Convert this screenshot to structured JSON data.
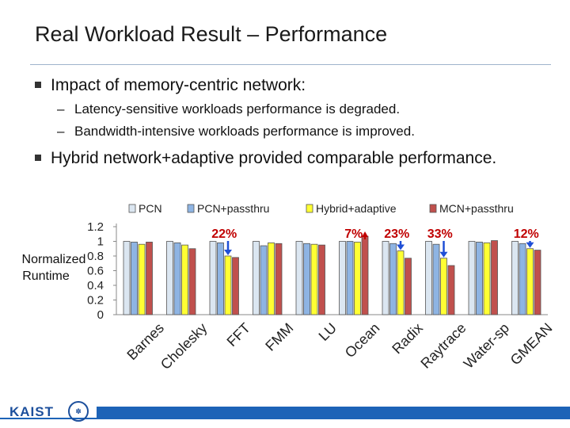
{
  "slide": {
    "title": "Real Workload Result – Performance",
    "bullets": [
      {
        "text": "Impact of memory-centric network:",
        "subs": [
          "Latency-sensitive workloads performance is degraded.",
          "Bandwidth-intensive workloads performance is improved."
        ]
      },
      {
        "text": "Hybrid network+adaptive provided comparable performance."
      }
    ]
  },
  "footer": {
    "logo_text": "KAIST",
    "seal_icon": "university-seal-icon"
  },
  "chart_data": {
    "type": "bar",
    "ylabel": "Normalized Runtime",
    "ylim": [
      0,
      1.2
    ],
    "yticks": [
      "0",
      "0.2",
      "0.4",
      "0.6",
      "0.8",
      "1",
      "1.2"
    ],
    "legend_position": "top",
    "categories": [
      "Barnes",
      "Cholesky",
      "FFT",
      "FMM",
      "LU",
      "Ocean",
      "Radix",
      "Raytrace",
      "Water-sp",
      "GMEAN"
    ],
    "series": [
      {
        "name": "PCN",
        "color": "#dbe6f1",
        "values": [
          1.0,
          1.0,
          1.0,
          1.0,
          1.0,
          1.0,
          1.0,
          1.0,
          1.0,
          1.0
        ]
      },
      {
        "name": "PCN+passthru",
        "color": "#8eb4e3",
        "values": [
          0.99,
          0.98,
          0.98,
          0.94,
          0.97,
          1.0,
          0.97,
          0.96,
          0.99,
          0.97
        ]
      },
      {
        "name": "Hybrid+adaptive",
        "color": "#ffff33",
        "values": [
          0.96,
          0.95,
          0.8,
          0.98,
          0.96,
          0.99,
          0.87,
          0.77,
          0.98,
          0.9
        ]
      },
      {
        "name": "MCN+passthru",
        "color": "#c0504d",
        "values": [
          0.99,
          0.9,
          0.78,
          0.97,
          0.95,
          1.07,
          0.77,
          0.67,
          1.01,
          0.88
        ]
      }
    ],
    "annotations": [
      {
        "text": "22%",
        "category": "FFT",
        "color": "#c00000",
        "arrow": "down",
        "arrow_color": "#1f4fd6"
      },
      {
        "text": "7%",
        "category": "Ocean",
        "color": "#c00000",
        "arrow": "up",
        "arrow_color": "#c00000"
      },
      {
        "text": "23%",
        "category": "Radix",
        "color": "#c00000",
        "arrow": "down",
        "arrow_color": "#1f4fd6"
      },
      {
        "text": "33%",
        "category": "Raytrace",
        "color": "#c00000",
        "arrow": "down",
        "arrow_color": "#1f4fd6"
      },
      {
        "text": "12%",
        "category": "GMEAN",
        "color": "#c00000",
        "arrow": "down",
        "arrow_color": "#1f4fd6"
      }
    ]
  }
}
